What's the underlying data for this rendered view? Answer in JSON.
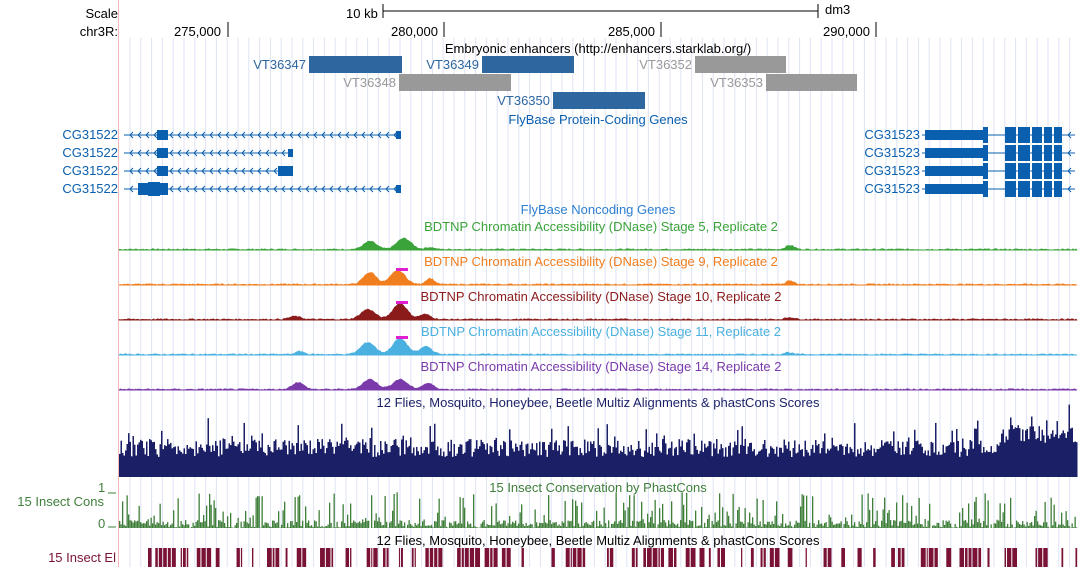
{
  "ruler": {
    "scale_label": "Scale",
    "chrom_label": "chr3R:",
    "scale_bar_text": "10 kb",
    "assembly": "dm3",
    "ticks": [
      "275,000",
      "280,000",
      "285,000",
      "290,000"
    ]
  },
  "tracks": {
    "enhancers": {
      "title": "Embryonic enhancers (http://enhancers.starklab.org/)",
      "items": [
        {
          "name": "VT36347",
          "state": "active"
        },
        {
          "name": "VT36349",
          "state": "active"
        },
        {
          "name": "VT36352",
          "state": "inactive"
        },
        {
          "name": "VT36348",
          "state": "inactive"
        },
        {
          "name": "VT36353",
          "state": "inactive"
        },
        {
          "name": "VT36350",
          "state": "active"
        }
      ]
    },
    "protein_coding": {
      "title": "FlyBase Protein-Coding Genes",
      "left_genes": [
        "CG31522",
        "CG31522",
        "CG31522",
        "CG31522"
      ],
      "right_genes": [
        "CG31523",
        "CG31523",
        "CG31523",
        "CG31523"
      ]
    },
    "noncoding": {
      "title": "FlyBase Noncoding Genes"
    },
    "dnase": [
      {
        "title": "BDTNP Chromatin Accessibility (DNase) Stage 5, Replicate 2",
        "color": "#3aa33a"
      },
      {
        "title": "BDTNP Chromatin Accessibility (DNase) Stage 9, Replicate 2",
        "color": "#f07d1e"
      },
      {
        "title": "BDTNP Chromatin Accessibility (DNase) Stage 10, Replicate 2",
        "color": "#8b1a1a"
      },
      {
        "title": "BDTNP Chromatin Accessibility (DNase) Stage 11, Replicate 2",
        "color": "#4ab0e0"
      },
      {
        "title": "BDTNP Chromatin Accessibility (DNase) Stage 14, Replicate 2",
        "color": "#7a3aaa"
      }
    ],
    "multiz": {
      "title": "12 Flies, Mosquito, Honeybee, Beetle Multiz Alignments & phastCons Scores"
    },
    "phastcons": {
      "title": "15 Insect Conservation by PhastCons",
      "side_label": "15 Insect Cons",
      "max_label": "1",
      "min_label": "0"
    },
    "elements": {
      "title": "12 Flies, Mosquito, Honeybee, Beetle Multiz Alignments & phastCons Scores",
      "side_label": "15 Insect El"
    }
  },
  "colors": {
    "enhancer_active": "#2e66a0",
    "enhancer_inactive": "#999999",
    "gene_blue": "#0a5fae",
    "multiz_navy": "#1a1f66",
    "phastcons_green": "#3f7f3a",
    "elements_maroon": "#7a1236",
    "highlight_magenta": "#e020d0"
  }
}
